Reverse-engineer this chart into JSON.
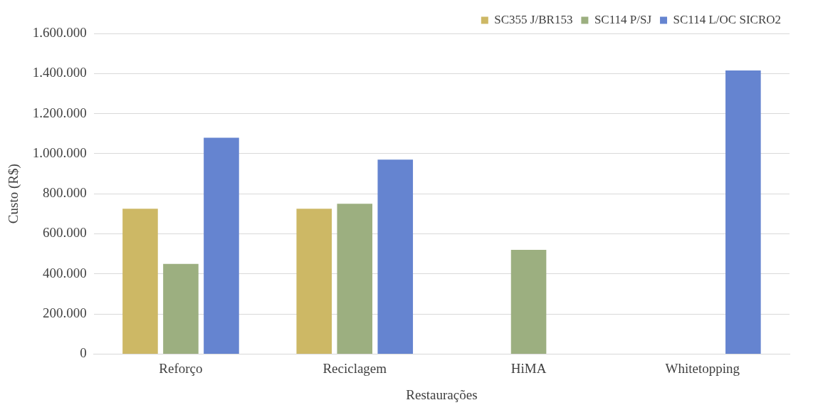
{
  "chart_data": {
    "type": "bar",
    "xlabel": "Restaurações",
    "ylabel": "Custo (R$)",
    "categories": [
      "Reforço",
      "Reciclagem",
      "HiMA",
      "Whitetopping"
    ],
    "series": [
      {
        "name": "SC355 J/BR153",
        "color": "#cdb865",
        "values": [
          725000,
          725000,
          null,
          null
        ]
      },
      {
        "name": "SC114 P/SJ",
        "color": "#9caf80",
        "values": [
          450000,
          750000,
          520000,
          null
        ]
      },
      {
        "name": "SC114 L/OC SICRO2",
        "color": "#6584d0",
        "values": [
          1080000,
          970000,
          null,
          1415000
        ]
      }
    ],
    "ylim": [
      0,
      1600000
    ],
    "yticks": [
      0,
      {
        "value": 200000,
        "label": "200.000"
      },
      {
        "value": 400000,
        "label": "400.000"
      },
      {
        "value": 600000,
        "label": "600.000"
      },
      {
        "value": 800000,
        "label": "800.000"
      },
      {
        "value": 1000000,
        "label": "1.000.000"
      },
      {
        "value": 1200000,
        "label": "1.200.000"
      },
      {
        "value": 1400000,
        "label": "1.400.000"
      },
      {
        "value": 1600000,
        "label": "1.600.000"
      }
    ],
    "grid": "y",
    "legend": "top right"
  }
}
